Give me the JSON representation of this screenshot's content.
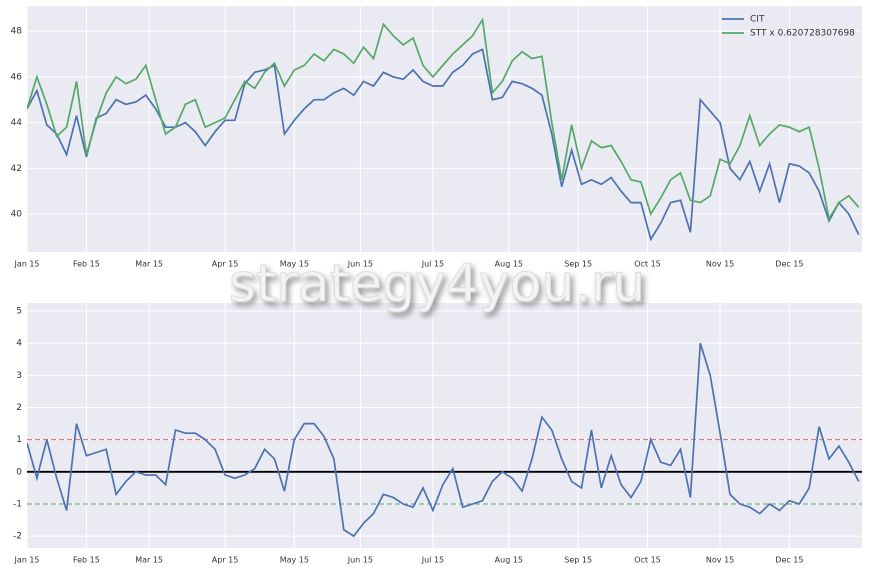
{
  "chart_data": [
    {
      "type": "line",
      "x": [
        0,
        3,
        6,
        9,
        12,
        15,
        18,
        21,
        24,
        27,
        30,
        33,
        36,
        39,
        42,
        45,
        48,
        51,
        54,
        57,
        60,
        63,
        66,
        69,
        72,
        75,
        78,
        81,
        84,
        87,
        90,
        93,
        96,
        99,
        102,
        105,
        108,
        111,
        114,
        117,
        120,
        123,
        126,
        129,
        132,
        135,
        138,
        141,
        144,
        147,
        150,
        153,
        156,
        159,
        162,
        165,
        168,
        171,
        174,
        177,
        180,
        183,
        186,
        189,
        192,
        195,
        198,
        201,
        204,
        207,
        210,
        213,
        216,
        219,
        222,
        225,
        228,
        231,
        234,
        237,
        240,
        243,
        246,
        249,
        252
      ],
      "series": [
        {
          "name": "CIT",
          "color": "#4c72b0",
          "values": [
            44.6,
            45.4,
            43.9,
            43.5,
            42.6,
            44.3,
            42.5,
            44.2,
            44.4,
            45.0,
            44.8,
            44.9,
            45.2,
            44.6,
            43.8,
            43.8,
            44.0,
            43.6,
            43.0,
            43.6,
            44.1,
            44.1,
            45.7,
            46.2,
            46.3,
            46.5,
            43.5,
            44.1,
            44.6,
            45.0,
            45.0,
            45.3,
            45.5,
            45.2,
            45.8,
            45.6,
            46.2,
            46.0,
            45.9,
            46.3,
            45.8,
            45.6,
            45.6,
            46.2,
            46.5,
            47.0,
            47.2,
            45.0,
            45.1,
            45.8,
            45.7,
            45.5,
            45.2,
            43.5,
            41.2,
            42.8,
            41.3,
            41.5,
            41.3,
            41.6,
            41.0,
            40.5,
            40.5,
            38.9,
            39.6,
            40.5,
            40.6,
            39.2,
            45.0,
            44.5,
            44.0,
            42.0,
            41.5,
            42.3,
            41.0,
            42.2,
            40.5,
            42.2,
            42.1,
            41.8,
            41.0,
            39.7,
            40.5,
            40.0,
            39.1
          ]
        },
        {
          "name": "STT x 0.620728307698",
          "color": "#55a868",
          "values": [
            44.6,
            46.0,
            44.8,
            43.4,
            43.8,
            45.8,
            42.6,
            44.1,
            45.3,
            46.0,
            45.7,
            45.9,
            46.5,
            45.0,
            43.5,
            43.8,
            44.8,
            45.0,
            43.8,
            44.0,
            44.2,
            45.0,
            45.8,
            45.5,
            46.2,
            46.6,
            45.6,
            46.3,
            46.5,
            47.0,
            46.7,
            47.2,
            47.0,
            46.6,
            47.3,
            46.8,
            48.3,
            47.8,
            47.4,
            47.7,
            46.5,
            46.0,
            46.5,
            47.0,
            47.4,
            47.8,
            48.5,
            45.3,
            45.8,
            46.7,
            47.1,
            46.8,
            46.9,
            44.0,
            41.5,
            43.9,
            42.0,
            43.2,
            42.9,
            43.0,
            42.3,
            41.5,
            41.4,
            40.0,
            40.7,
            41.5,
            41.8,
            40.6,
            40.5,
            40.8,
            42.4,
            42.2,
            43.0,
            44.3,
            43.0,
            43.5,
            43.9,
            43.8,
            43.6,
            43.8,
            42.0,
            39.8,
            40.5,
            40.8,
            40.3
          ]
        }
      ],
      "xlim": [
        0,
        253
      ],
      "xticks": [
        {
          "value": 0,
          "label": "Jan 15"
        },
        {
          "value": 18,
          "label": "Feb 15"
        },
        {
          "value": 37,
          "label": "Mar 15"
        },
        {
          "value": 60,
          "label": "Apr 15"
        },
        {
          "value": 81,
          "label": "May 15"
        },
        {
          "value": 101,
          "label": "Jun 15"
        },
        {
          "value": 123,
          "label": "Jul 15"
        },
        {
          "value": 146,
          "label": "Aug 15"
        },
        {
          "value": 167,
          "label": "Sep 15"
        },
        {
          "value": 188,
          "label": "Oct 15"
        },
        {
          "value": 210,
          "label": "Nov 15"
        },
        {
          "value": 231,
          "label": "Dec 15"
        }
      ],
      "ylim": [
        38.34,
        49.1
      ],
      "yticks": [
        40,
        42,
        44,
        46,
        48
      ],
      "grid": true,
      "legend": "upper right"
    },
    {
      "type": "line",
      "x": [
        0,
        3,
        6,
        9,
        12,
        15,
        18,
        21,
        24,
        27,
        30,
        33,
        36,
        39,
        42,
        45,
        48,
        51,
        54,
        57,
        60,
        63,
        66,
        69,
        72,
        75,
        78,
        81,
        84,
        87,
        90,
        93,
        96,
        99,
        102,
        105,
        108,
        111,
        114,
        117,
        120,
        123,
        126,
        129,
        132,
        135,
        138,
        141,
        144,
        147,
        150,
        153,
        156,
        159,
        162,
        165,
        168,
        171,
        174,
        177,
        180,
        183,
        186,
        189,
        192,
        195,
        198,
        201,
        204,
        207,
        210,
        213,
        216,
        219,
        222,
        225,
        228,
        231,
        234,
        237,
        240,
        243,
        246,
        249,
        252
      ],
      "series": [
        {
          "color": "#4c72b0",
          "values": [
            0.9,
            -0.2,
            1.0,
            -0.2,
            -1.2,
            1.5,
            0.5,
            0.6,
            0.7,
            -0.7,
            -0.3,
            0.0,
            -0.1,
            -0.1,
            -0.4,
            1.3,
            1.2,
            1.2,
            1.0,
            0.7,
            -0.1,
            -0.2,
            -0.1,
            0.1,
            0.7,
            0.4,
            -0.6,
            1.0,
            1.5,
            1.5,
            1.1,
            0.4,
            -1.8,
            -2.0,
            -1.6,
            -1.3,
            -0.7,
            -0.8,
            -1.0,
            -1.1,
            -0.5,
            -1.2,
            -0.4,
            0.1,
            -1.1,
            -1.0,
            -0.9,
            -0.3,
            0.0,
            -0.2,
            -0.6,
            0.4,
            1.7,
            1.3,
            0.4,
            -0.3,
            -0.5,
            1.3,
            -0.5,
            0.5,
            -0.4,
            -0.8,
            -0.3,
            1.0,
            0.3,
            0.2,
            0.7,
            -0.8,
            4.0,
            3.0,
            1.2,
            -0.7,
            -1.0,
            -1.1,
            -1.3,
            -1.0,
            -1.2,
            -0.9,
            -1.0,
            -0.5,
            1.4,
            0.4,
            0.8,
            0.3,
            -0.3
          ]
        }
      ],
      "xlim": [
        0,
        253
      ],
      "xticks": [
        {
          "value": 0,
          "label": "Jan 15"
        },
        {
          "value": 18,
          "label": "Feb 15"
        },
        {
          "value": 37,
          "label": "Mar 15"
        },
        {
          "value": 60,
          "label": "Apr 15"
        },
        {
          "value": 81,
          "label": "May 15"
        },
        {
          "value": 101,
          "label": "Jun 15"
        },
        {
          "value": 123,
          "label": "Jul 15"
        },
        {
          "value": 146,
          "label": "Aug 15"
        },
        {
          "value": 167,
          "label": "Sep 15"
        },
        {
          "value": 188,
          "label": "Oct 15"
        },
        {
          "value": 210,
          "label": "Nov 15"
        },
        {
          "value": 231,
          "label": "Dec 15"
        }
      ],
      "ylim": [
        -2.37,
        5.25
      ],
      "yticks": [
        -2,
        -1,
        0,
        1,
        2,
        3,
        4,
        5
      ],
      "grid": true,
      "hlines": [
        {
          "value": 1,
          "color": "#e06666",
          "style": "dashed"
        },
        {
          "value": -1,
          "color": "#55a868",
          "style": "dashed"
        },
        {
          "value": 0,
          "color": "#000000",
          "style": "solid"
        }
      ]
    }
  ],
  "watermark": "strategy4you.ru"
}
